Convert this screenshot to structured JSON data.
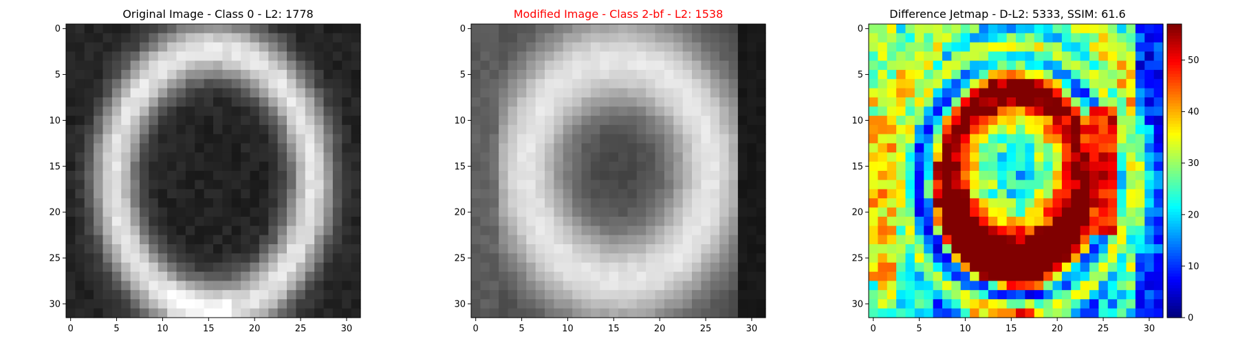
{
  "panels": [
    {
      "id": "original",
      "title": "Original Image - Class 0 - L2: 1778",
      "title_color": "#000000",
      "colormap": "gray",
      "x_ticks": [
        "0",
        "5",
        "10",
        "15",
        "20",
        "25",
        "30"
      ],
      "y_ticks": [
        "0",
        "5",
        "10",
        "15",
        "20",
        "25",
        "30"
      ]
    },
    {
      "id": "modified",
      "title": "Modified Image - Class 2-bf - L2: 1538",
      "title_color": "#ff0000",
      "colormap": "gray",
      "x_ticks": [
        "0",
        "5",
        "10",
        "15",
        "20",
        "25",
        "30"
      ],
      "y_ticks": [
        "0",
        "5",
        "10",
        "15",
        "20",
        "25",
        "30"
      ]
    },
    {
      "id": "difference",
      "title": "Difference Jetmap - D-L2: 5333, SSIM: 61.6",
      "title_color": "#000000",
      "colormap": "jet",
      "x_ticks": [
        "0",
        "5",
        "10",
        "15",
        "20",
        "25",
        "30"
      ],
      "y_ticks": [
        "0",
        "5",
        "10",
        "15",
        "20",
        "25",
        "30"
      ]
    }
  ],
  "colorbar": {
    "ticks": [
      "0",
      "10",
      "20",
      "30",
      "40",
      "50"
    ],
    "range": [
      0,
      57
    ]
  },
  "chart_data": [
    {
      "type": "heatmap",
      "title": "Original Image - Class 0 - L2: 1778",
      "grid_size": [
        32,
        32
      ],
      "xlim": [
        -0.5,
        31.5
      ],
      "ylim": [
        31.5,
        -0.5
      ],
      "colormap": "gray",
      "description_values": "ellipse ring of bright pixels (~225) centered near (15.5,16.5) on dark background (~40)"
    },
    {
      "type": "heatmap",
      "title": "Modified Image - Class 2-bf - L2: 1538",
      "grid_size": [
        32,
        32
      ],
      "xlim": [
        -0.5,
        31.5
      ],
      "ylim": [
        31.5,
        -0.5
      ],
      "colormap": "gray"
    },
    {
      "type": "heatmap",
      "title": "Difference Jetmap - D-L2: 5333, SSIM: 61.6",
      "grid_size": [
        32,
        32
      ],
      "xlim": [
        -0.5,
        31.5
      ],
      "ylim": [
        31.5,
        -0.5
      ],
      "colormap": "jet",
      "colorbar_range": [
        0,
        57
      ]
    }
  ]
}
